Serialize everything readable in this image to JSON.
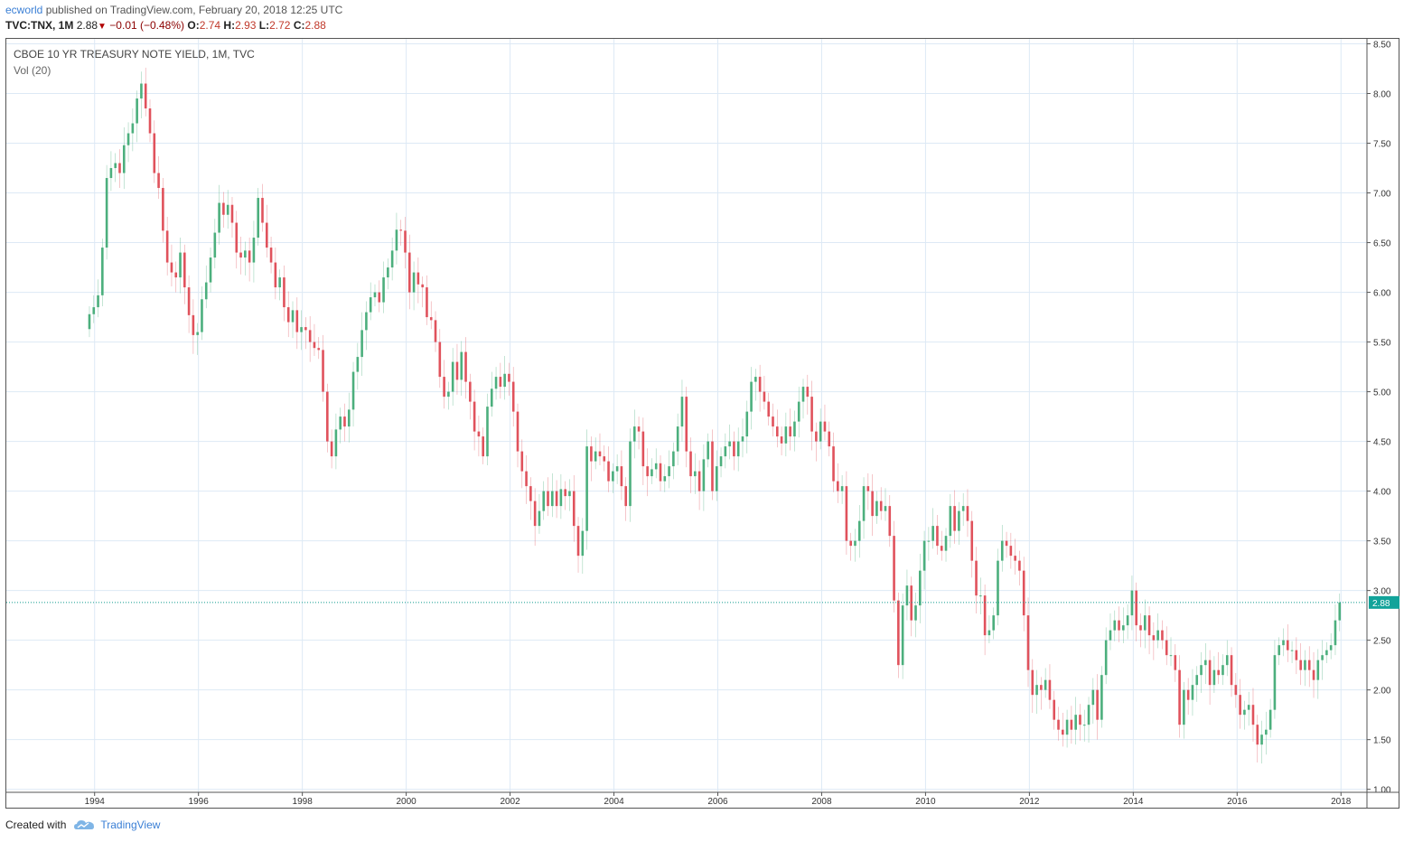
{
  "header": {
    "author": "ecworld",
    "published_text": "published on TradingView.com, February 20, 2018 12:25 UTC",
    "symbol": "TVC:TNX, 1M",
    "last": "2.88",
    "change": "−0.01 (−0.48%)",
    "open_label": "O:",
    "open": "2.74",
    "high_label": "H:",
    "high": "2.93",
    "low_label": "L:",
    "low": "2.72",
    "close_label": "C:",
    "close": "2.88"
  },
  "legend": {
    "title": "CBOE 10 YR TREASURY NOTE YIELD, 1M, TVC",
    "volume": "Vol (20)"
  },
  "footer": {
    "created_with": "Created with",
    "brand": "TradingView",
    "logo_icon": "tradingview-cloud-icon"
  },
  "colors": {
    "up": "#4caf7d",
    "down": "#e0525c",
    "grid": "#dde9f5",
    "last_price_line": "#0e9a8e",
    "last_price_label_bg": "#12a39a"
  },
  "chart_data": {
    "type": "candlestick",
    "title": "CBOE 10 YR TREASURY NOTE YIELD, 1M, TVC",
    "interval": "1M",
    "xlim": [
      1992.3,
      2018.5
    ],
    "ylim": [
      0.97,
      8.55
    ],
    "x_ticks": [
      "1994",
      "1996",
      "1998",
      "2000",
      "2002",
      "2004",
      "2006",
      "2008",
      "2010",
      "2012",
      "2014",
      "2016",
      "2018"
    ],
    "y_ticks": [
      "8.50",
      "8.00",
      "7.50",
      "7.00",
      "6.50",
      "6.00",
      "5.50",
      "5.00",
      "4.50",
      "4.00",
      "3.50",
      "3.00",
      "2.50",
      "2.00",
      "1.50",
      "1.00"
    ],
    "grid": true,
    "last_price": "2.88",
    "series": [
      {
        "start_year": 1993.9,
        "step_year": 0.0833,
        "close": [
          5.78,
          5.85,
          5.97,
          6.45,
          7.15,
          7.25,
          7.3,
          7.2,
          7.48,
          7.6,
          7.7,
          7.95,
          8.1,
          7.85,
          7.6,
          7.2,
          7.05,
          6.62,
          6.3,
          6.2,
          6.15,
          6.4,
          6.05,
          5.77,
          5.57,
          5.6,
          5.93,
          6.1,
          6.35,
          6.6,
          6.9,
          6.78,
          6.88,
          6.7,
          6.4,
          6.35,
          6.42,
          6.3,
          6.55,
          6.95,
          6.7,
          6.45,
          6.3,
          6.05,
          6.15,
          5.85,
          5.7,
          5.82,
          5.6,
          5.65,
          5.62,
          5.5,
          5.44,
          5.42,
          5.0,
          4.5,
          4.35,
          4.62,
          4.75,
          4.65,
          4.82,
          5.2,
          5.35,
          5.62,
          5.8,
          5.95,
          6.0,
          5.9,
          6.15,
          6.25,
          6.42,
          6.63,
          6.62,
          6.4,
          6.0,
          6.2,
          6.08,
          6.05,
          5.75,
          5.72,
          5.5,
          5.15,
          4.95,
          5.0,
          5.3,
          5.12,
          5.4,
          5.1,
          4.9,
          4.6,
          4.55,
          4.35,
          4.85,
          5.03,
          5.15,
          5.05,
          5.18,
          5.1,
          4.8,
          4.4,
          4.2,
          4.05,
          3.9,
          3.65,
          3.8,
          4.0,
          3.85,
          4.0,
          3.85,
          4.02,
          3.95,
          4.0,
          3.65,
          3.35,
          3.6,
          4.45,
          4.3,
          4.4,
          4.35,
          4.3,
          4.1,
          4.2,
          4.25,
          4.05,
          3.85,
          4.5,
          4.65,
          4.6,
          4.25,
          4.15,
          4.22,
          4.28,
          4.1,
          4.15,
          4.25,
          4.4,
          4.65,
          4.95,
          4.4,
          4.15,
          4.2,
          4.0,
          4.32,
          4.5,
          4.0,
          4.25,
          4.35,
          4.45,
          4.5,
          4.35,
          4.5,
          4.55,
          4.8,
          5.1,
          5.15,
          5.0,
          4.9,
          4.75,
          4.65,
          4.55,
          4.48,
          4.65,
          4.55,
          4.7,
          4.9,
          5.05,
          4.95,
          4.6,
          4.5,
          4.7,
          4.6,
          4.45,
          4.1,
          4.0,
          4.05,
          3.5,
          3.45,
          3.5,
          3.7,
          4.05,
          4.0,
          3.75,
          3.9,
          3.8,
          3.85,
          3.55,
          2.9,
          2.25,
          2.85,
          3.05,
          2.7,
          2.85,
          3.2,
          3.5,
          3.5,
          3.65,
          3.45,
          3.4,
          3.55,
          3.85,
          3.6,
          3.8,
          3.85,
          3.7,
          3.3,
          2.95,
          2.95,
          2.55,
          2.6,
          2.75,
          3.3,
          3.5,
          3.45,
          3.35,
          3.3,
          3.2,
          2.75,
          2.2,
          1.95,
          2.05,
          2.0,
          2.1,
          1.9,
          1.7,
          1.6,
          1.55,
          1.7,
          1.6,
          1.75,
          1.65,
          1.65,
          1.85,
          2.0,
          1.7,
          2.15,
          2.5,
          2.6,
          2.7,
          2.6,
          2.65,
          2.75,
          3.0,
          2.65,
          2.6,
          2.75,
          2.55,
          2.5,
          2.6,
          2.5,
          2.35,
          2.35,
          2.2,
          1.65,
          2.0,
          1.9,
          2.05,
          2.15,
          2.25,
          2.3,
          2.05,
          2.2,
          2.15,
          2.25,
          2.35,
          2.05,
          1.95,
          1.75,
          1.8,
          1.85,
          1.65,
          1.45,
          1.55,
          1.6,
          1.8,
          2.35,
          2.45,
          2.5,
          2.4,
          2.4,
          2.3,
          2.2,
          2.3,
          2.2,
          2.1,
          2.3,
          2.35,
          2.4,
          2.45,
          2.7,
          2.88
        ]
      }
    ]
  }
}
